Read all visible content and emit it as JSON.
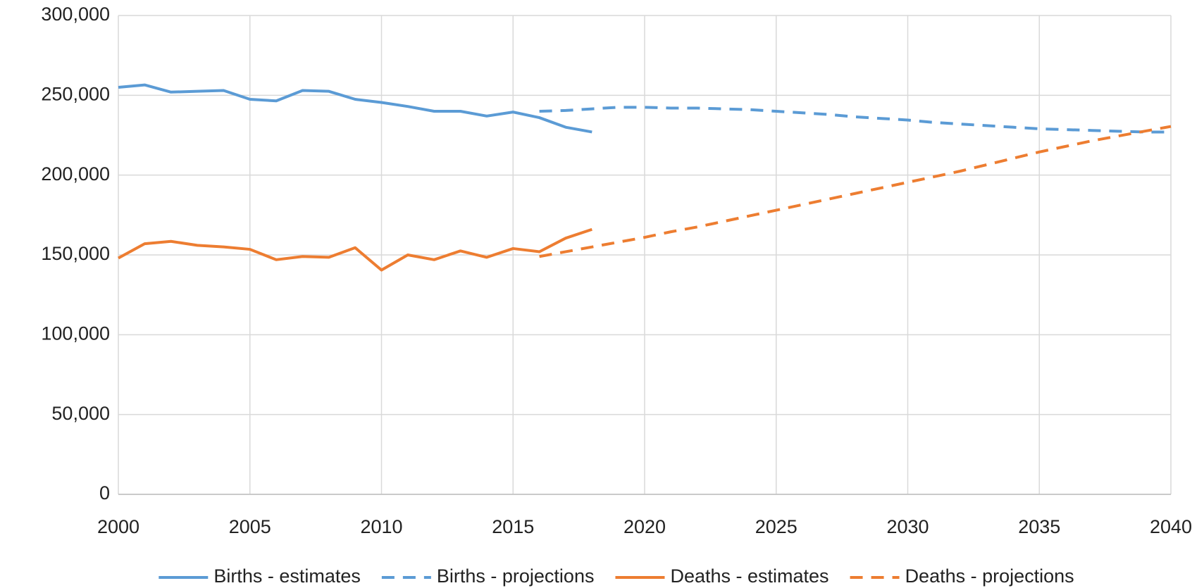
{
  "chart_data": {
    "type": "line",
    "xlim": [
      2000,
      2040
    ],
    "xticks": [
      2000,
      2005,
      2010,
      2015,
      2020,
      2025,
      2030,
      2035,
      2040
    ],
    "ylim": [
      0,
      300000
    ],
    "yticks": [
      0,
      {
        "value": 50000,
        "label": "50,000"
      },
      {
        "value": 100000,
        "label": "100,000"
      },
      {
        "value": 150000,
        "label": "150,000"
      },
      {
        "value": 200000,
        "label": "200,000"
      },
      {
        "value": 250000,
        "label": "250,000"
      },
      {
        "value": 300000,
        "label": "300,000"
      }
    ],
    "grid": true,
    "legend": "bottom",
    "series": [
      {
        "name": "Births - estimates",
        "color": "#5b9bd5",
        "dashed": false,
        "x": [
          2000,
          2001,
          2002,
          2003,
          2004,
          2005,
          2006,
          2007,
          2008,
          2009,
          2010,
          2011,
          2012,
          2013,
          2014,
          2015,
          2016,
          2017,
          2018
        ],
        "values": [
          255000,
          256500,
          252000,
          252500,
          253000,
          247500,
          246500,
          253000,
          252500,
          247500,
          245500,
          243000,
          240000,
          240000,
          237000,
          239500,
          236000,
          230000,
          227000
        ]
      },
      {
        "name": "Births - projections",
        "color": "#5b9bd5",
        "dashed": true,
        "x": [
          2016,
          2017,
          2018,
          2019,
          2020,
          2021,
          2022,
          2023,
          2024,
          2025,
          2026,
          2027,
          2028,
          2029,
          2030,
          2031,
          2032,
          2033,
          2034,
          2035,
          2036,
          2037,
          2038,
          2039,
          2040
        ],
        "values": [
          240000,
          240500,
          241500,
          242500,
          242500,
          242000,
          242000,
          241500,
          241000,
          240000,
          239000,
          238000,
          236500,
          235500,
          234500,
          233000,
          232000,
          231000,
          230000,
          229000,
          228500,
          228000,
          227500,
          227000,
          227000
        ]
      },
      {
        "name": "Deaths - estimates",
        "color": "#ed7d31",
        "dashed": false,
        "x": [
          2000,
          2001,
          2002,
          2003,
          2004,
          2005,
          2006,
          2007,
          2008,
          2009,
          2010,
          2011,
          2012,
          2013,
          2014,
          2015,
          2016,
          2017,
          2018
        ],
        "values": [
          148000,
          157000,
          158500,
          156000,
          155000,
          153500,
          147000,
          149000,
          148500,
          154500,
          140500,
          150000,
          147000,
          152500,
          148500,
          154000,
          152000,
          160500,
          166000
        ]
      },
      {
        "name": "Deaths - projections",
        "color": "#ed7d31",
        "dashed": true,
        "x": [
          2016,
          2017,
          2018,
          2019,
          2020,
          2021,
          2022,
          2023,
          2024,
          2025,
          2026,
          2027,
          2028,
          2029,
          2030,
          2031,
          2032,
          2033,
          2034,
          2035,
          2036,
          2037,
          2038,
          2039,
          2040
        ],
        "values": [
          149000,
          152000,
          155000,
          158000,
          161000,
          164500,
          167500,
          171000,
          174500,
          178000,
          181500,
          185000,
          188500,
          192000,
          195500,
          199000,
          202500,
          206500,
          210500,
          214500,
          218000,
          221500,
          224500,
          227500,
          230500
        ]
      }
    ]
  }
}
